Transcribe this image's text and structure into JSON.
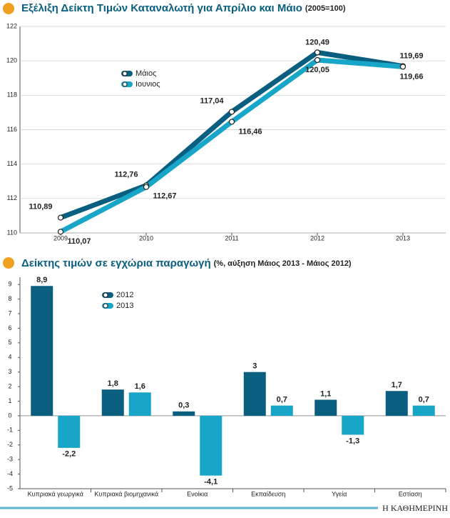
{
  "chart_data": [
    {
      "type": "line",
      "title": "Εξέλιξη Δείκτη Τιμών Καταναλωτή για Απρίλιο και Μάιο",
      "subtitle": "(2005=100)",
      "categories": [
        "2009",
        "2010",
        "2011",
        "2012",
        "2013"
      ],
      "series": [
        {
          "name": "Μάιος",
          "color": "#0a5f80",
          "values": [
            110.89,
            112.76,
            117.04,
            120.49,
            119.69
          ],
          "value_labels": [
            "110,89",
            "112,76",
            "117,04",
            "120,49",
            "119,69"
          ]
        },
        {
          "name": "Ιουνιος",
          "color": "#17a5c8",
          "values": [
            110.07,
            112.67,
            116.46,
            120.05,
            119.66
          ],
          "value_labels": [
            "110,07",
            "112,67",
            "116,46",
            "120,05",
            "119,66"
          ]
        }
      ],
      "ylim": [
        110,
        122
      ],
      "yticks": [
        110,
        112,
        114,
        116,
        118,
        120,
        122
      ],
      "grid": true
    },
    {
      "type": "bar",
      "title": "Δείκτης τιμών σε εγχώρια παραγωγή",
      "subtitle": "(%, αύξηση Μάιος 2013 - Μάιος 2012)",
      "categories": [
        "Κυπριακά γεωργικά",
        "Κυπριακά βιομηχανικά",
        "Ενοίκια",
        "Εκπαίδευση",
        "Υγεία",
        "Εστίαση"
      ],
      "series": [
        {
          "name": "2012",
          "color": "#0a5f80",
          "values": [
            8.9,
            1.8,
            0.3,
            3,
            1.1,
            1.7
          ],
          "value_labels": [
            "8,9",
            "1,8",
            "0,3",
            "3",
            "1,1",
            "1,7"
          ]
        },
        {
          "name": "2013",
          "color": "#17a5c8",
          "values": [
            -2.2,
            1.6,
            -4.1,
            0.7,
            -1.3,
            0.7
          ],
          "value_labels": [
            "-2,2",
            "1,6",
            "-4,1",
            "0,7",
            "-1,3",
            "0,7"
          ]
        }
      ],
      "ylim": [
        -5,
        9.5
      ],
      "yticks": [
        -5,
        -4,
        -3,
        -2,
        -1,
        0,
        1,
        2,
        3,
        4,
        5,
        6,
        7,
        8,
        9
      ],
      "grid": false
    }
  ],
  "footer": "Η ΚΑΘΗΜΕΡΙΝΗ"
}
